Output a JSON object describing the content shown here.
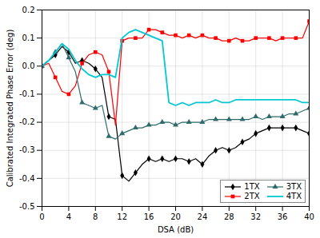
{
  "chart_data": {
    "type": "line",
    "xlabel": "DSA (dB)",
    "ylabel": "Calibrated Integrated Phase Error (deg)",
    "x": [
      0,
      1,
      2,
      3,
      4,
      5,
      6,
      7,
      8,
      9,
      10,
      11,
      12,
      13,
      14,
      15,
      16,
      17,
      18,
      19,
      20,
      21,
      22,
      23,
      24,
      25,
      26,
      27,
      28,
      29,
      30,
      31,
      32,
      33,
      34,
      35,
      36,
      37,
      38,
      39,
      40
    ],
    "series": [
      {
        "name": "1TX",
        "color": "#000000",
        "marker": "diamond",
        "values": [
          0.0,
          0.02,
          0.04,
          0.07,
          0.05,
          0.01,
          0.02,
          0.01,
          -0.01,
          -0.04,
          -0.18,
          -0.19,
          -0.39,
          -0.41,
          -0.38,
          -0.35,
          -0.33,
          -0.34,
          -0.33,
          -0.34,
          -0.33,
          -0.33,
          -0.34,
          -0.33,
          -0.35,
          -0.32,
          -0.3,
          -0.29,
          -0.3,
          -0.29,
          -0.27,
          -0.26,
          -0.24,
          -0.23,
          -0.22,
          -0.22,
          -0.22,
          -0.22,
          -0.22,
          -0.23,
          -0.24
        ]
      },
      {
        "name": "2TX",
        "color": "#ff0000",
        "marker": "square",
        "values": [
          0.0,
          0.01,
          -0.04,
          -0.09,
          -0.1,
          -0.07,
          0.01,
          0.04,
          0.05,
          0.04,
          -0.02,
          -0.21,
          0.09,
          0.1,
          0.1,
          0.1,
          0.13,
          0.13,
          0.12,
          0.11,
          0.11,
          0.1,
          0.11,
          0.1,
          0.11,
          0.1,
          0.1,
          0.09,
          0.09,
          0.1,
          0.09,
          0.09,
          0.1,
          0.1,
          0.1,
          0.09,
          0.1,
          0.1,
          0.1,
          0.1,
          0.16
        ]
      },
      {
        "name": "3TX",
        "color": "#2e6b6b",
        "marker": "triangle",
        "values": [
          0.0,
          0.02,
          0.05,
          0.08,
          0.03,
          -0.02,
          -0.13,
          -0.14,
          -0.15,
          -0.14,
          -0.25,
          -0.26,
          -0.24,
          -0.23,
          -0.22,
          -0.22,
          -0.21,
          -0.21,
          -0.2,
          -0.2,
          -0.21,
          -0.2,
          -0.2,
          -0.2,
          -0.2,
          -0.19,
          -0.19,
          -0.19,
          -0.19,
          -0.19,
          -0.19,
          -0.19,
          -0.18,
          -0.19,
          -0.18,
          -0.18,
          -0.18,
          -0.17,
          -0.17,
          -0.16,
          -0.15
        ]
      },
      {
        "name": "4TX",
        "color": "#00c8d4",
        "values": [
          0.0,
          0.02,
          0.05,
          0.08,
          0.06,
          0.02,
          -0.01,
          -0.03,
          -0.04,
          -0.03,
          -0.03,
          -0.04,
          0.1,
          0.12,
          0.13,
          0.12,
          0.11,
          0.1,
          0.09,
          -0.13,
          -0.14,
          -0.13,
          -0.14,
          -0.13,
          -0.13,
          -0.13,
          -0.12,
          -0.13,
          -0.13,
          -0.12,
          -0.12,
          -0.12,
          -0.12,
          -0.12,
          -0.12,
          -0.12,
          -0.12,
          -0.12,
          -0.12,
          -0.13,
          -0.13
        ]
      }
    ],
    "xlim": [
      0,
      40
    ],
    "ylim": [
      -0.5,
      0.2
    ],
    "xticks": [
      0,
      4,
      8,
      12,
      16,
      20,
      24,
      28,
      32,
      36,
      40
    ],
    "yticks": [
      -0.5,
      -0.4,
      -0.3,
      -0.2,
      -0.1,
      {
        "value": 0.0,
        "label": "0.0"
      },
      0.1,
      0.2
    ],
    "grid": true,
    "legend": "lower right"
  }
}
